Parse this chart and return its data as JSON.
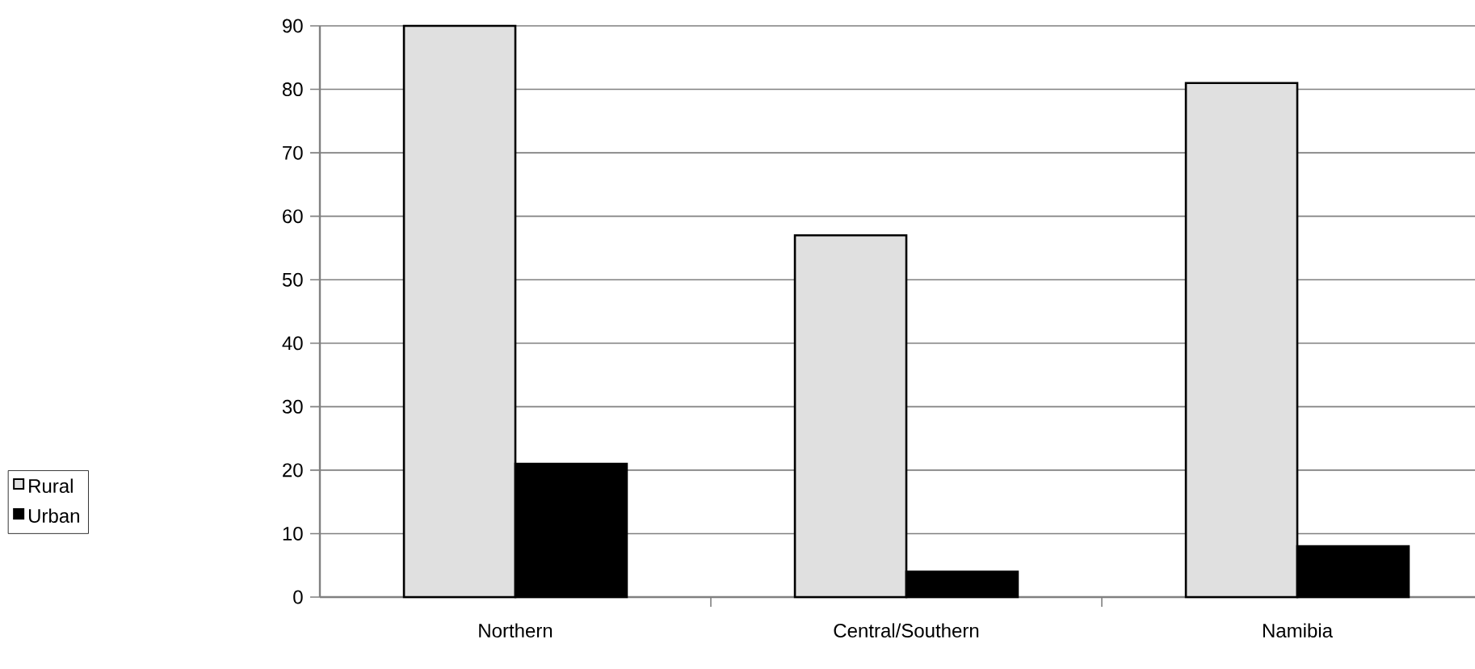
{
  "chart_data": {
    "type": "bar",
    "categories": [
      "Northern",
      "Central/Southern",
      "Namibia"
    ],
    "series": [
      {
        "name": "Rural",
        "color": "#e0e0e0",
        "values": [
          90,
          57,
          81
        ]
      },
      {
        "name": "Urban",
        "color": "#000000",
        "values": [
          21,
          4,
          8
        ]
      }
    ],
    "ylim": [
      0,
      90
    ],
    "yticks": [
      0,
      10,
      20,
      30,
      40,
      50,
      60,
      70,
      80,
      90
    ],
    "grid": "y",
    "legend": "left"
  }
}
